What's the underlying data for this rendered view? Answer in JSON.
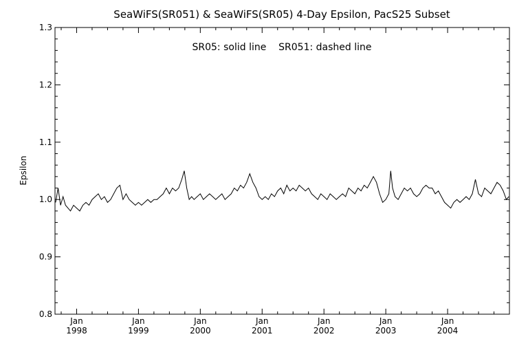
{
  "chart_data": {
    "type": "line",
    "title": "SeaWiFS(SR051) & SeaWiFS(SR05) 4-Day Epsilon, PacS25 Subset",
    "annotation": "SR05: solid line    SR051: dashed line",
    "ylabel": "Epsilon",
    "xlabel": "",
    "ylim": [
      0.8,
      1.3
    ],
    "xlim": [
      1997.65,
      2005.0
    ],
    "yticks": [
      "0.8",
      "0.9",
      "1.0",
      "1.1",
      "1.2",
      "1.3"
    ],
    "xticks": [
      {
        "month": "Jan",
        "year": "1998",
        "x": 1998.0
      },
      {
        "month": "Jan",
        "year": "1999",
        "x": 1999.0
      },
      {
        "month": "Jan",
        "year": "2000",
        "x": 2000.0
      },
      {
        "month": "Jan",
        "year": "2001",
        "x": 2001.0
      },
      {
        "month": "Jan",
        "year": "2002",
        "x": 2002.0
      },
      {
        "month": "Jan",
        "year": "2003",
        "x": 2003.0
      },
      {
        "month": "Jan",
        "year": "2004",
        "x": 2004.0
      }
    ],
    "grid": false,
    "series": [
      {
        "style": "solid",
        "points": [
          [
            1997.66,
            0.995
          ],
          [
            1997.7,
            1.02
          ],
          [
            1997.74,
            0.99
          ],
          [
            1997.78,
            1.005
          ],
          [
            1997.82,
            0.99
          ],
          [
            1997.86,
            0.985
          ],
          [
            1997.9,
            0.98
          ],
          [
            1997.95,
            0.99
          ],
          [
            1998.0,
            0.985
          ],
          [
            1998.05,
            0.98
          ],
          [
            1998.1,
            0.99
          ],
          [
            1998.15,
            0.995
          ],
          [
            1998.2,
            0.99
          ],
          [
            1998.25,
            1.0
          ],
          [
            1998.3,
            1.005
          ],
          [
            1998.35,
            1.01
          ],
          [
            1998.4,
            1.0
          ],
          [
            1998.45,
            1.005
          ],
          [
            1998.5,
            0.995
          ],
          [
            1998.55,
            1.0
          ],
          [
            1998.6,
            1.01
          ],
          [
            1998.65,
            1.02
          ],
          [
            1998.7,
            1.025
          ],
          [
            1998.75,
            1.0
          ],
          [
            1998.8,
            1.01
          ],
          [
            1998.85,
            1.0
          ],
          [
            1998.9,
            0.995
          ],
          [
            1998.95,
            0.99
          ],
          [
            1999.0,
            0.995
          ],
          [
            1999.05,
            0.99
          ],
          [
            1999.1,
            0.995
          ],
          [
            1999.15,
            1.0
          ],
          [
            1999.2,
            0.995
          ],
          [
            1999.25,
            1.0
          ],
          [
            1999.3,
            1.0
          ],
          [
            1999.35,
            1.005
          ],
          [
            1999.4,
            1.01
          ],
          [
            1999.45,
            1.02
          ],
          [
            1999.5,
            1.01
          ],
          [
            1999.55,
            1.02
          ],
          [
            1999.6,
            1.015
          ],
          [
            1999.65,
            1.02
          ],
          [
            1999.7,
            1.035
          ],
          [
            1999.74,
            1.05
          ],
          [
            1999.78,
            1.02
          ],
          [
            1999.82,
            1.0
          ],
          [
            1999.86,
            1.005
          ],
          [
            1999.9,
            1.0
          ],
          [
            1999.95,
            1.005
          ],
          [
            2000.0,
            1.01
          ],
          [
            2000.05,
            1.0
          ],
          [
            2000.1,
            1.005
          ],
          [
            2000.15,
            1.01
          ],
          [
            2000.2,
            1.005
          ],
          [
            2000.25,
            1.0
          ],
          [
            2000.3,
            1.005
          ],
          [
            2000.35,
            1.01
          ],
          [
            2000.4,
            1.0
          ],
          [
            2000.45,
            1.005
          ],
          [
            2000.5,
            1.01
          ],
          [
            2000.55,
            1.02
          ],
          [
            2000.6,
            1.015
          ],
          [
            2000.65,
            1.025
          ],
          [
            2000.7,
            1.02
          ],
          [
            2000.75,
            1.03
          ],
          [
            2000.8,
            1.045
          ],
          [
            2000.85,
            1.03
          ],
          [
            2000.9,
            1.02
          ],
          [
            2000.95,
            1.005
          ],
          [
            2001.0,
            1.0
          ],
          [
            2001.05,
            1.005
          ],
          [
            2001.1,
            1.0
          ],
          [
            2001.15,
            1.01
          ],
          [
            2001.2,
            1.005
          ],
          [
            2001.25,
            1.015
          ],
          [
            2001.3,
            1.02
          ],
          [
            2001.35,
            1.01
          ],
          [
            2001.4,
            1.025
          ],
          [
            2001.45,
            1.015
          ],
          [
            2001.5,
            1.02
          ],
          [
            2001.55,
            1.015
          ],
          [
            2001.6,
            1.025
          ],
          [
            2001.65,
            1.02
          ],
          [
            2001.7,
            1.015
          ],
          [
            2001.75,
            1.02
          ],
          [
            2001.8,
            1.01
          ],
          [
            2001.85,
            1.005
          ],
          [
            2001.9,
            1.0
          ],
          [
            2001.95,
            1.01
          ],
          [
            2002.0,
            1.005
          ],
          [
            2002.05,
            1.0
          ],
          [
            2002.1,
            1.01
          ],
          [
            2002.15,
            1.005
          ],
          [
            2002.2,
            1.0
          ],
          [
            2002.25,
            1.005
          ],
          [
            2002.3,
            1.01
          ],
          [
            2002.35,
            1.005
          ],
          [
            2002.4,
            1.02
          ],
          [
            2002.45,
            1.015
          ],
          [
            2002.5,
            1.01
          ],
          [
            2002.55,
            1.02
          ],
          [
            2002.6,
            1.015
          ],
          [
            2002.65,
            1.025
          ],
          [
            2002.7,
            1.02
          ],
          [
            2002.75,
            1.03
          ],
          [
            2002.8,
            1.04
          ],
          [
            2002.85,
            1.03
          ],
          [
            2002.9,
            1.01
          ],
          [
            2002.95,
            0.995
          ],
          [
            2003.0,
            1.0
          ],
          [
            2003.05,
            1.01
          ],
          [
            2003.08,
            1.05
          ],
          [
            2003.11,
            1.02
          ],
          [
            2003.15,
            1.005
          ],
          [
            2003.2,
            1.0
          ],
          [
            2003.25,
            1.01
          ],
          [
            2003.3,
            1.02
          ],
          [
            2003.35,
            1.015
          ],
          [
            2003.4,
            1.02
          ],
          [
            2003.45,
            1.01
          ],
          [
            2003.5,
            1.005
          ],
          [
            2003.55,
            1.01
          ],
          [
            2003.6,
            1.02
          ],
          [
            2003.65,
            1.025
          ],
          [
            2003.7,
            1.02
          ],
          [
            2003.75,
            1.02
          ],
          [
            2003.8,
            1.01
          ],
          [
            2003.85,
            1.015
          ],
          [
            2003.9,
            1.005
          ],
          [
            2003.95,
            0.995
          ],
          [
            2004.0,
            0.99
          ],
          [
            2004.05,
            0.985
          ],
          [
            2004.1,
            0.995
          ],
          [
            2004.15,
            1.0
          ],
          [
            2004.2,
            0.995
          ],
          [
            2004.25,
            1.0
          ],
          [
            2004.3,
            1.005
          ],
          [
            2004.35,
            1.0
          ],
          [
            2004.4,
            1.01
          ],
          [
            2004.45,
            1.035
          ],
          [
            2004.5,
            1.01
          ],
          [
            2004.55,
            1.005
          ],
          [
            2004.6,
            1.02
          ],
          [
            2004.65,
            1.015
          ],
          [
            2004.7,
            1.01
          ],
          [
            2004.75,
            1.02
          ],
          [
            2004.8,
            1.03
          ],
          [
            2004.85,
            1.025
          ],
          [
            2004.9,
            1.015
          ],
          [
            2004.95,
            1.0
          ],
          [
            2004.99,
            1.005
          ]
        ]
      }
    ]
  }
}
